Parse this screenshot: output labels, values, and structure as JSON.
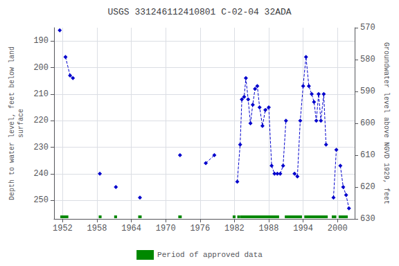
{
  "chart_data": {
    "type": "line",
    "title": "USGS 331246112410801 C-02-04 32ADA",
    "ylabel": "Depth to water level, feet below land\nsurface",
    "y2label": "Groundwater level above NGVD 1929, feet",
    "xlim": [
      1950.5,
      2003
    ],
    "xticks": [
      1952,
      1958,
      1964,
      1970,
      1976,
      1982,
      1988,
      1994,
      2000
    ],
    "ylim": [
      257,
      185
    ],
    "yticks": [
      190,
      200,
      210,
      220,
      230,
      240,
      250
    ],
    "y2lim": [
      630,
      570
    ],
    "y2ticks": [
      630,
      620,
      610,
      600,
      590,
      580,
      570
    ],
    "grid": true,
    "legend": "bottom",
    "series": [
      {
        "type": "line",
        "color": "#0000cc",
        "marker": "diamond",
        "line_style": "dashed",
        "x": [
          1951.5,
          null,
          1952.5,
          1953.3,
          1953.8,
          null,
          1958.5,
          null,
          1961.3,
          null,
          1965.5,
          null,
          1972.5,
          null,
          1977.0,
          1978.5,
          null,
          1982.5,
          1983.0,
          1983.3,
          1983.7,
          1984.0,
          1984.4,
          1984.8,
          1985.2,
          1985.6,
          1986.0,
          1986.4,
          1986.9,
          1987.4,
          1988.0,
          1988.5,
          1989.0,
          1989.5,
          null,
          1990.0,
          1990.5,
          1991.0,
          null,
          1992.5,
          1993.0,
          1993.5,
          1994.0,
          1994.5,
          1995.0,
          1995.5,
          1995.9,
          1996.3,
          1996.7,
          1997.1,
          1997.6,
          1998.0,
          null,
          1999.3,
          1999.8,
          null,
          2000.5,
          2001.0,
          2001.5,
          2002.0
        ],
        "values": [
          186,
          null,
          196,
          203,
          204,
          null,
          240,
          null,
          245,
          null,
          249,
          null,
          233,
          null,
          236,
          233,
          null,
          243,
          229,
          212,
          211,
          204,
          212,
          221,
          214,
          208,
          207,
          215,
          222,
          216,
          215,
          237,
          240,
          240,
          null,
          240,
          237,
          220,
          null,
          240,
          241,
          220,
          207,
          196,
          207,
          210,
          213,
          220,
          210,
          220,
          210,
          229,
          null,
          249,
          231,
          null,
          237,
          245,
          248,
          253
        ]
      },
      {
        "type": "span",
        "name": "Period of approved data",
        "color": "#008800",
        "values": [
          [
            1951.6,
            1953.0
          ],
          [
            1958.3,
            1958.8
          ],
          [
            1961.0,
            1961.5
          ],
          [
            1965.2,
            1965.8
          ],
          [
            1972.2,
            1972.8
          ],
          [
            1981.7,
            1982.2
          ],
          [
            1982.5,
            1983.0
          ],
          [
            1983.0,
            1989.8
          ],
          [
            1990.8,
            1993.8
          ],
          [
            1994.2,
            1998.3
          ],
          [
            1999.0,
            1999.8
          ],
          [
            2000.2,
            2001.8
          ]
        ]
      }
    ]
  }
}
